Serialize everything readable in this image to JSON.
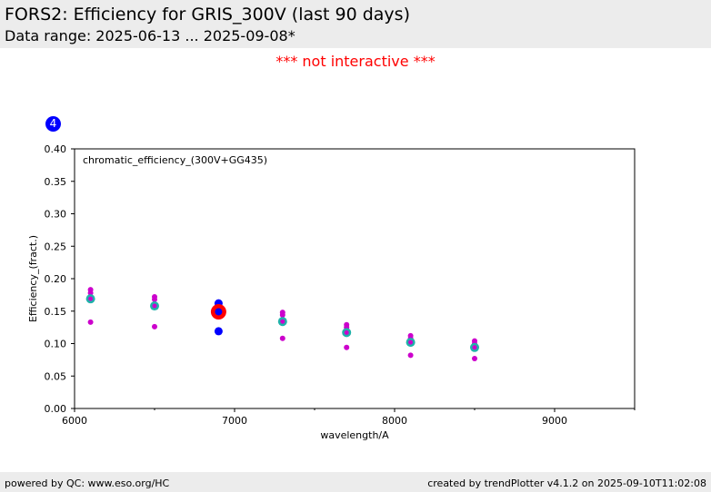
{
  "header": {
    "title": "FORS2: Efficiency for GRIS_300V (last 90 days)",
    "subtitle": "Data range: 2025-06-13 ... 2025-09-08*"
  },
  "notice": "*** not interactive ***",
  "badge": "4",
  "footer": {
    "left": "powered by QC: www.eso.org/HC",
    "right": "created by trendPlotter v4.1.2 on 2025-09-10T11:02:08"
  },
  "chart_data": {
    "type": "scatter",
    "annotation": "chromatic_efficiency_(300V+GG435)",
    "xlabel": "wavelength/A",
    "ylabel": "Efficiency_(fract.)",
    "xlim": [
      6000,
      9500
    ],
    "ylim": [
      0.0,
      0.4
    ],
    "x_ticks": [
      "6000",
      "7000",
      "8000",
      "9000"
    ],
    "x_tick_values": [
      6000,
      7000,
      8000,
      9000
    ],
    "x_minor_tick_values": [
      6500,
      7500,
      8500,
      9500
    ],
    "y_ticks": [
      "0.00",
      "0.05",
      "0.10",
      "0.15",
      "0.20",
      "0.25",
      "0.30",
      "0.35",
      "0.40"
    ],
    "y_tick_values": [
      0.0,
      0.05,
      0.1,
      0.15,
      0.2,
      0.25,
      0.3,
      0.35,
      0.4
    ],
    "grid": false,
    "colors": {
      "magenta": "#cc00cc",
      "cyan": "#20b2aa",
      "blue": "#0000ff",
      "red": "#ff0000"
    },
    "series": [
      {
        "style": "magenta-small",
        "points": [
          [
            6100,
            0.183
          ],
          [
            6100,
            0.178
          ],
          [
            6100,
            0.133
          ],
          [
            6500,
            0.172
          ],
          [
            6500,
            0.168
          ],
          [
            6500,
            0.126
          ],
          [
            7300,
            0.148
          ],
          [
            7300,
            0.144
          ],
          [
            7300,
            0.108
          ],
          [
            7700,
            0.129
          ],
          [
            7700,
            0.125
          ],
          [
            7700,
            0.094
          ],
          [
            8100,
            0.112
          ],
          [
            8100,
            0.108
          ],
          [
            8100,
            0.082
          ],
          [
            8500,
            0.104
          ],
          [
            8500,
            0.1
          ],
          [
            8500,
            0.077
          ]
        ]
      },
      {
        "style": "cyan-ring",
        "points": [
          [
            6100,
            0.169
          ],
          [
            6500,
            0.158
          ],
          [
            7300,
            0.134
          ],
          [
            7700,
            0.117
          ],
          [
            8100,
            0.102
          ],
          [
            8500,
            0.094
          ]
        ]
      },
      {
        "style": "blue-dot",
        "points": [
          [
            6900,
            0.162
          ],
          [
            6900,
            0.119
          ]
        ]
      },
      {
        "style": "red-highlight",
        "points": [
          [
            6900,
            0.149
          ]
        ]
      }
    ]
  }
}
